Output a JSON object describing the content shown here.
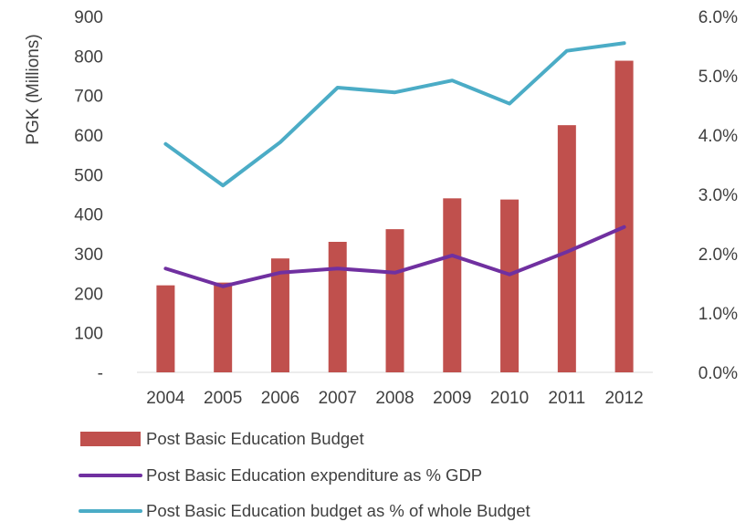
{
  "chart_data": {
    "type": "bar",
    "title": "",
    "xlabel": "",
    "ylabel": "PGK (Millions)",
    "ylabel_right": "",
    "categories": [
      "2004",
      "2005",
      "2006",
      "2007",
      "2008",
      "2009",
      "2010",
      "2011",
      "2012"
    ],
    "y_ticks": [
      "-",
      "100",
      "200",
      "300",
      "400",
      "500",
      "600",
      "700",
      "800",
      "900"
    ],
    "y_tick_values": [
      0,
      100,
      200,
      300,
      400,
      500,
      600,
      700,
      800,
      900
    ],
    "ylim": [
      0,
      900
    ],
    "y2_ticks": [
      "0.0%",
      "1.0%",
      "2.0%",
      "3.0%",
      "4.0%",
      "5.0%",
      "6.0%"
    ],
    "y2_tick_values": [
      0,
      1,
      2,
      3,
      4,
      5,
      6
    ],
    "y2lim": [
      0,
      6
    ],
    "grid": false,
    "legend_position": "bottom",
    "series": [
      {
        "name": "Post Basic Education Budget",
        "type": "bar",
        "axis": "left",
        "color": "#c0504d",
        "values": [
          220,
          227,
          288,
          330,
          362,
          440,
          437,
          625,
          788
        ]
      },
      {
        "name": "Post Basic Education expenditure as % GDP",
        "type": "line",
        "axis": "right",
        "color": "#7030a0",
        "values": [
          1.75,
          1.45,
          1.68,
          1.75,
          1.68,
          1.97,
          1.65,
          2.03,
          2.45
        ]
      },
      {
        "name": "Post Basic Education budget as % of whole Budget",
        "type": "line",
        "axis": "right",
        "color": "#4bacc6",
        "values": [
          3.85,
          3.15,
          3.88,
          4.8,
          4.72,
          4.92,
          4.53,
          5.42,
          5.55
        ]
      }
    ]
  }
}
